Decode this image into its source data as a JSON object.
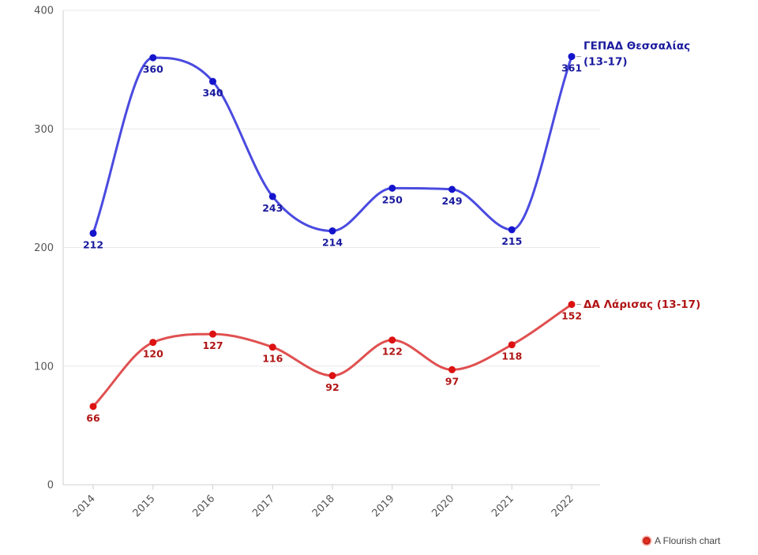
{
  "chart_data": {
    "type": "line",
    "x": [
      "2014",
      "2015",
      "2016",
      "2017",
      "2018",
      "2019",
      "2020",
      "2021",
      "2022"
    ],
    "ylim": [
      0,
      400
    ],
    "yticks": [
      "0",
      "100",
      "200",
      "300",
      "400"
    ],
    "grid": true,
    "legend": "end-of-line labels",
    "series": [
      {
        "name": "ΓΕΠΑΔ Θεσσαλίας",
        "name_suffix": "(13-17)",
        "color": "#4a4ae0",
        "marker_color": "#1414cc",
        "label_color": "#1a1a9e",
        "values": [
          212,
          360,
          340,
          243,
          214,
          250,
          249,
          215,
          361
        ]
      },
      {
        "name": "ΔΑ Λάρισας (13-17)",
        "color": "#e05050",
        "marker_color": "#dd1111",
        "label_color": "#b01515",
        "values": [
          66,
          120,
          127,
          116,
          92,
          122,
          97,
          118,
          152
        ]
      }
    ]
  },
  "credit": {
    "text": "A Flourish chart",
    "icon": "flourish-logo-icon"
  }
}
